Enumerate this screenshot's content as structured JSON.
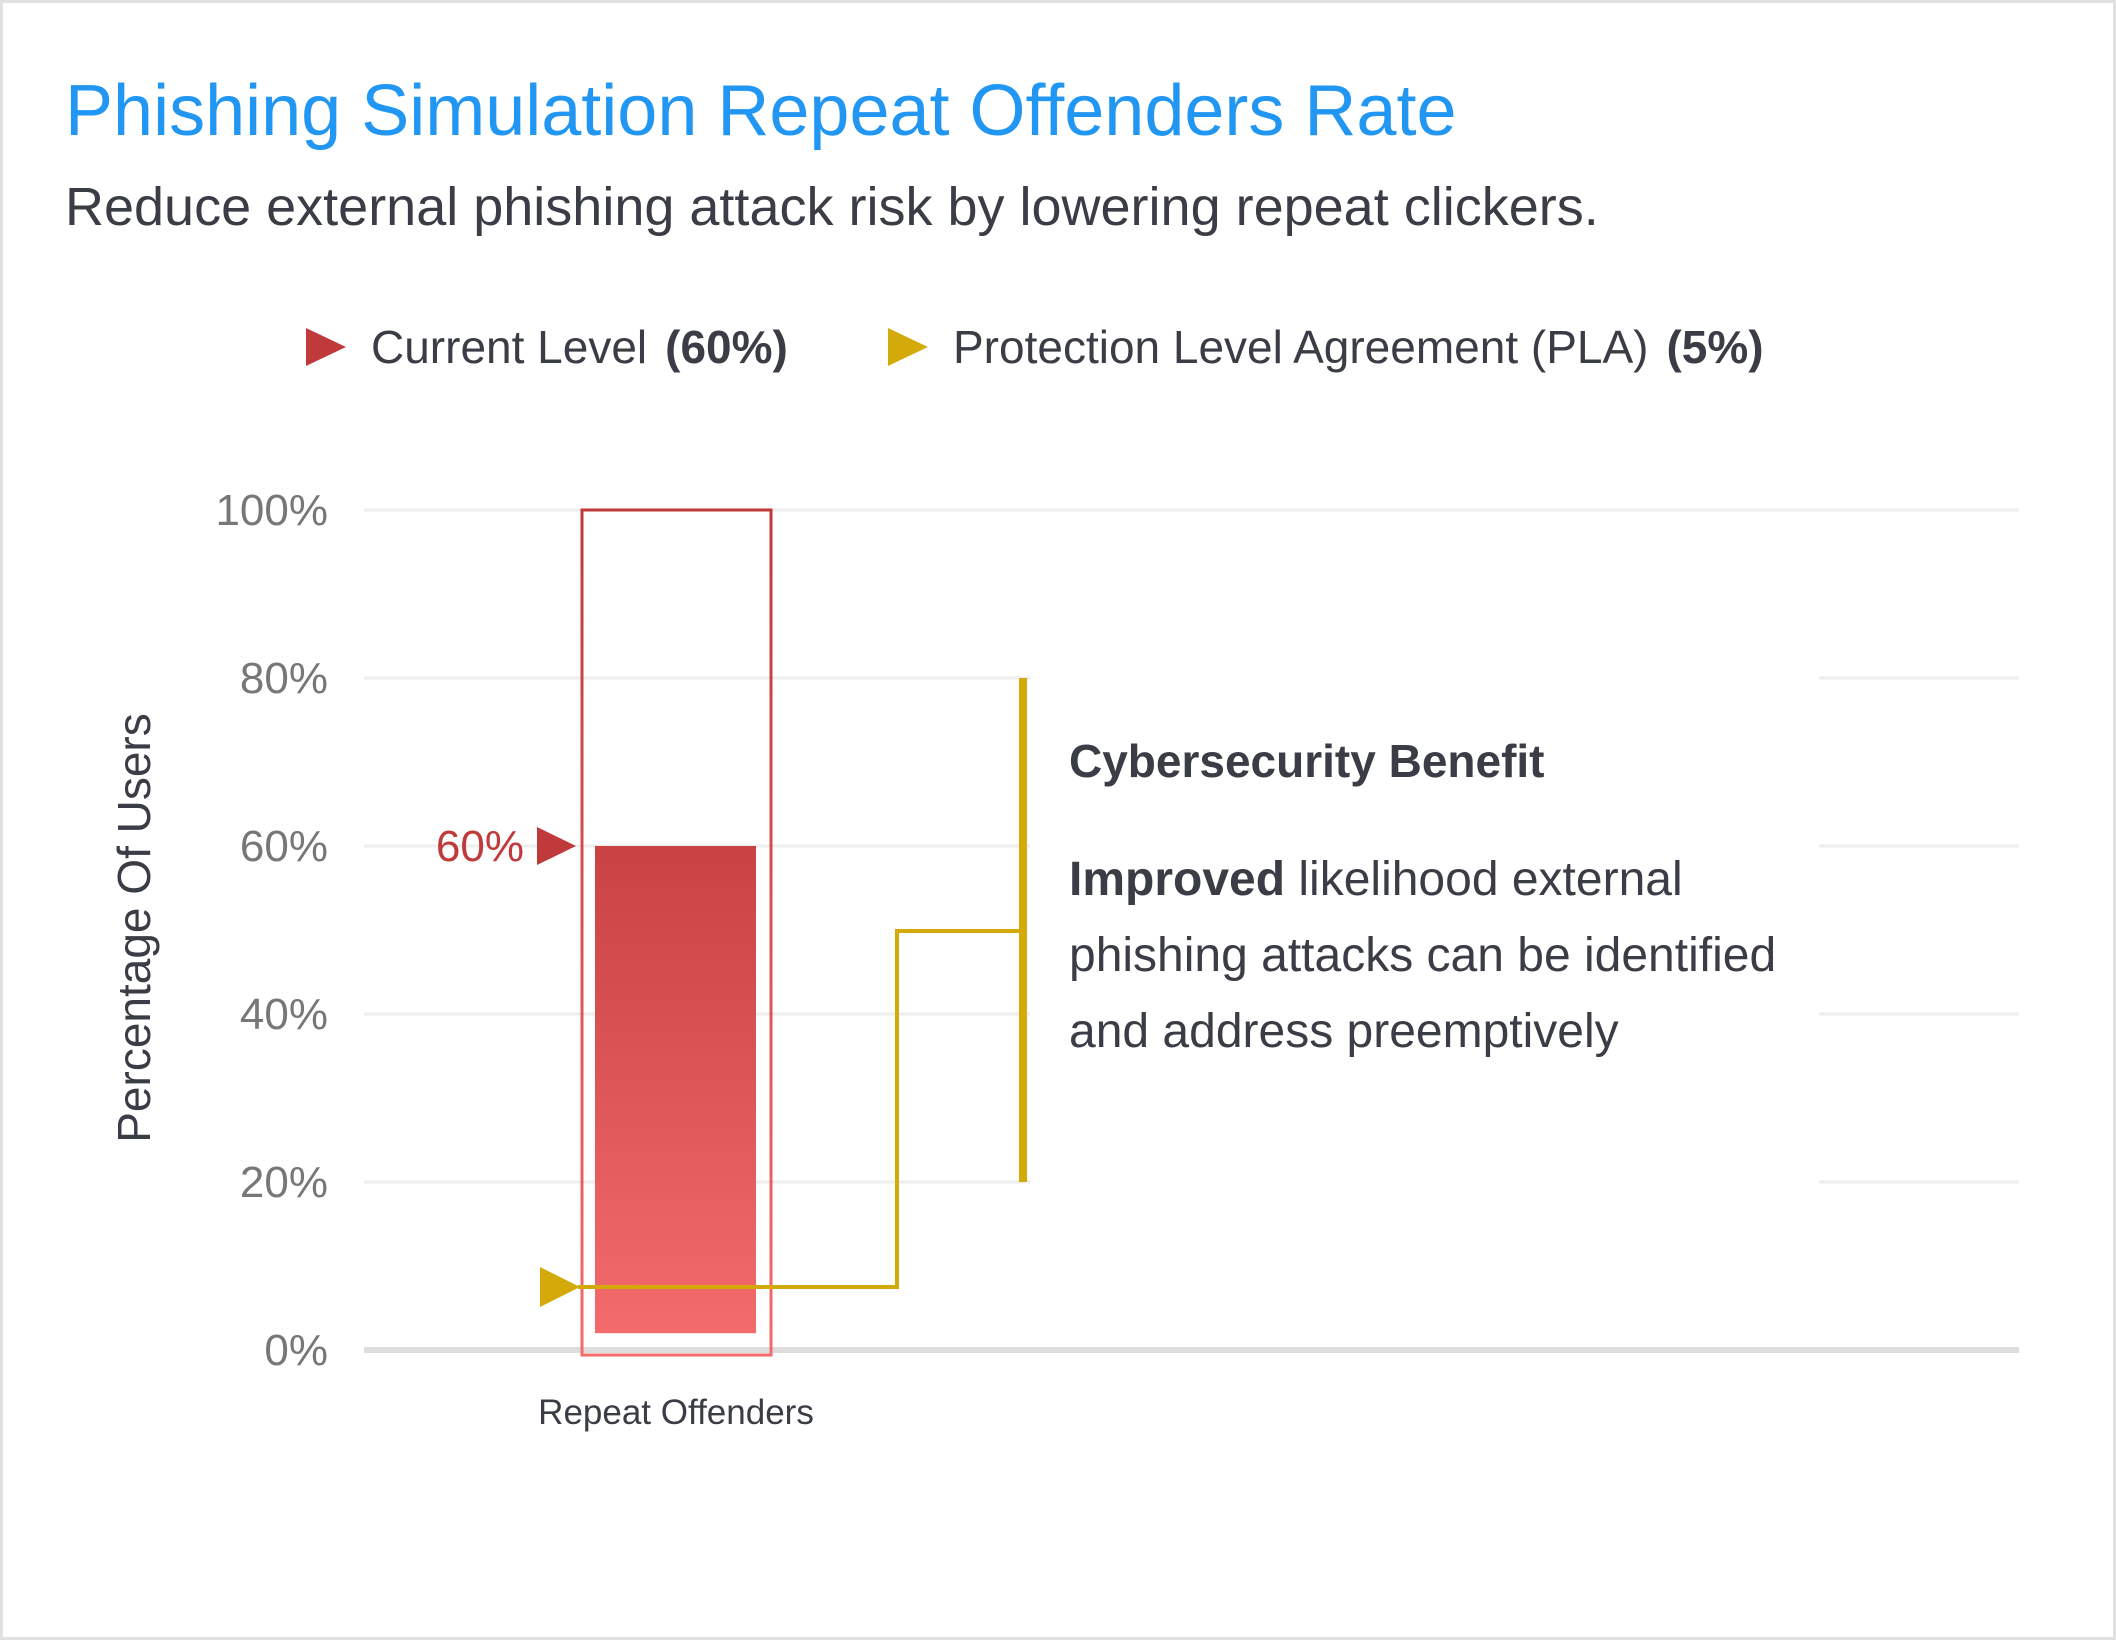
{
  "title": "Phishing Simulation Repeat Offenders Rate",
  "subtitle": "Reduce external phishing attack risk by lowering repeat clickers.",
  "legend": [
    {
      "label": "Current Level",
      "value": "(60%)",
      "color": "#c0393b",
      "icon": "triangle-right-icon"
    },
    {
      "label": "Protection Level Agreement (PLA)",
      "value": "(5%)",
      "color": "#d4aa0a",
      "icon": "triangle-right-icon"
    }
  ],
  "benefit": {
    "title": "Cybersecurity Benefit",
    "bold": "Improved",
    "text": " likelihood external phishing attacks can be identified and address preemptively"
  },
  "chart_data": {
    "type": "bar",
    "categories": [
      "Repeat Offenders"
    ],
    "values": [
      60
    ],
    "current_label": "60%",
    "pla": 5,
    "ylabel": "Percentage Of Users",
    "ylim": [
      0,
      100
    ],
    "yticks": [
      "0%",
      "20%",
      "40%",
      "60%",
      "80%",
      "100%"
    ],
    "grid": true,
    "colors": {
      "bar_top": "#c94244",
      "bar_bottom": "#f36b6b",
      "pla": "#d4aa0a",
      "grid": "#eeeeee",
      "axis": "#dddddd"
    }
  }
}
